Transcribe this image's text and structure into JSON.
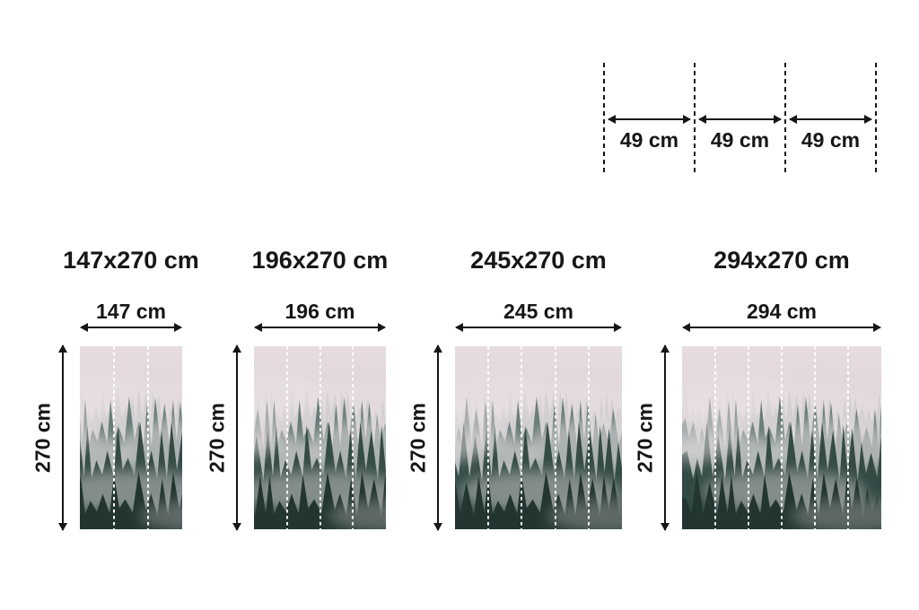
{
  "colors": {
    "ink": "#161616",
    "background": "#ffffff",
    "cutline": "#ffffff",
    "sky_top": "#e7dcdf",
    "sky_mid": "#d8ced1",
    "sky_bottom": "#c9c2c5",
    "fog": "#e9e1e4",
    "trees_far": "#8fa19d",
    "trees_mid": "#546c67",
    "trees_near": "#304742",
    "trees_front": "#223531"
  },
  "panel_diagram": {
    "segments": [
      {
        "label": "49 cm"
      },
      {
        "label": "49 cm"
      },
      {
        "label": "49 cm"
      }
    ]
  },
  "sizes": [
    {
      "title": "147x270 cm",
      "width_label": "147 cm",
      "height_label": "270 cm",
      "panels": 3
    },
    {
      "title": "196x270 cm",
      "width_label": "196 cm",
      "height_label": "270 cm",
      "panels": 4
    },
    {
      "title": "245x270 cm",
      "width_label": "245 cm",
      "height_label": "270 cm",
      "panels": 5
    },
    {
      "title": "294x270 cm",
      "width_label": "294 cm",
      "height_label": "270 cm",
      "panels": 6
    }
  ]
}
